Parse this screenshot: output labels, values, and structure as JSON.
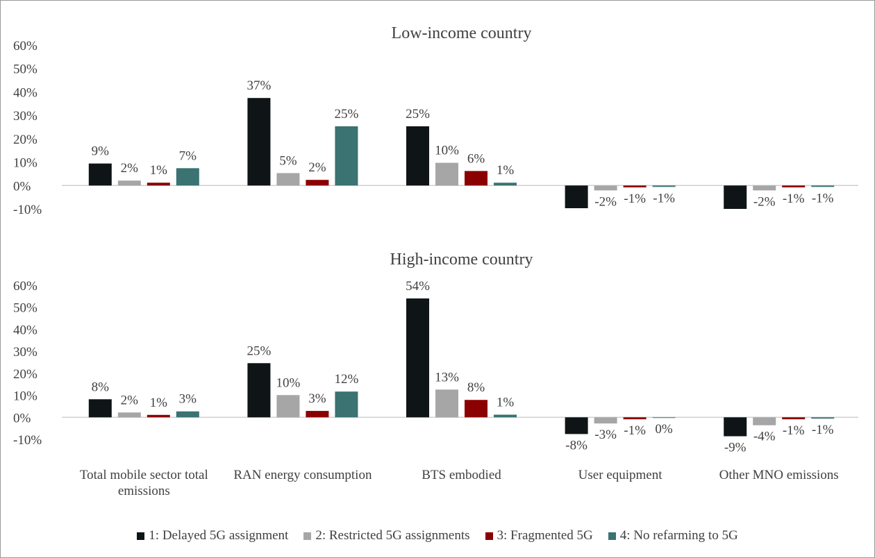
{
  "chart_data": {
    "type": "bar",
    "categories": [
      "Total mobile sector total emissions",
      "RAN energy consumption",
      "BTS embodied",
      "User equipment",
      "Other MNO emissions"
    ],
    "series": [
      {
        "name": "1: Delayed 5G assignment",
        "color": "#0f1516"
      },
      {
        "name": "2: Restricted 5G assignments",
        "color": "#a6a6a6"
      },
      {
        "name": "3: Fragmented 5G",
        "color": "#8b0000"
      },
      {
        "name": "4: No refarming to 5G",
        "color": "#3a7371"
      }
    ],
    "panels": [
      {
        "title": "Low-income country",
        "ylim": [
          -10,
          60
        ],
        "yticks": [
          {
            "value": -10,
            "label": "-10%"
          },
          {
            "value": 0,
            "label": "0%"
          },
          {
            "value": 10,
            "label": "10%"
          },
          {
            "value": 20,
            "label": "20%"
          },
          {
            "value": 30,
            "label": "30%"
          },
          {
            "value": 40,
            "label": "40%"
          },
          {
            "value": 50,
            "label": "50%"
          },
          {
            "value": 60,
            "label": "60%"
          }
        ],
        "series": [
          {
            "values": [
              9.4,
              37.4,
              25.3,
              -9.7,
              -10
            ],
            "value_labels": [
              "9%",
              "37%",
              "25%",
              null,
              null
            ]
          },
          {
            "values": [
              2.1,
              5.3,
              9.7,
              -2.1,
              -2.1
            ],
            "value_labels": [
              "2%",
              "5%",
              "10%",
              "-2%",
              "-2%"
            ]
          },
          {
            "values": [
              1.2,
              2.4,
              6.2,
              -0.8,
              -0.8
            ],
            "value_labels": [
              "1%",
              "2%",
              "6%",
              "-1%",
              "-1%"
            ]
          },
          {
            "values": [
              7.4,
              25.3,
              1.2,
              -0.6,
              -0.6
            ],
            "value_labels": [
              "7%",
              "25%",
              "1%",
              "-1%",
              "-1%"
            ]
          }
        ]
      },
      {
        "title": "High-income country",
        "ylim": [
          -10,
          60
        ],
        "yticks": [
          {
            "value": -10,
            "label": "-10%"
          },
          {
            "value": 0,
            "label": "0%"
          },
          {
            "value": 10,
            "label": "10%"
          },
          {
            "value": 20,
            "label": "20%"
          },
          {
            "value": 30,
            "label": "30%"
          },
          {
            "value": 40,
            "label": "40%"
          },
          {
            "value": 50,
            "label": "50%"
          },
          {
            "value": 60,
            "label": "60%"
          }
        ],
        "series": [
          {
            "values": [
              8.2,
              24.6,
              54,
              -7.6,
              -8.6
            ],
            "value_labels": [
              "8%",
              "25%",
              "54%",
              "-8%",
              "-9%"
            ]
          },
          {
            "values": [
              2.2,
              10.1,
              12.6,
              -2.8,
              -3.6
            ],
            "value_labels": [
              "2%",
              "10%",
              "13%",
              "-3%",
              "-4%"
            ]
          },
          {
            "values": [
              1.1,
              2.9,
              7.9,
              -0.9,
              -0.9
            ],
            "value_labels": [
              "1%",
              "3%",
              "8%",
              "-1%",
              "-1%"
            ]
          },
          {
            "values": [
              2.7,
              11.7,
              1.2,
              -0.3,
              -0.6
            ],
            "value_labels": [
              "3%",
              "12%",
              "1%",
              "0%",
              "-1%"
            ]
          }
        ]
      }
    ]
  }
}
